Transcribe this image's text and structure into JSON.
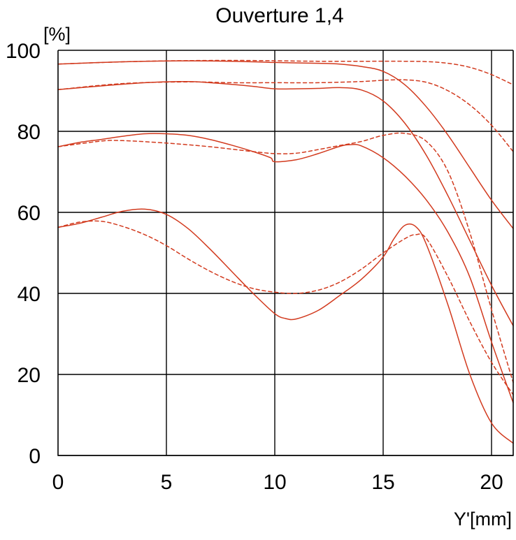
{
  "chart_data": {
    "type": "line",
    "title": "Ouverture 1,4",
    "ylabel": "[%]",
    "xlabel": "Y'[mm]",
    "xlim": [
      0,
      21
    ],
    "ylim": [
      0,
      100
    ],
    "xticks": [
      0,
      5,
      10,
      15,
      20
    ],
    "yticks": [
      0,
      20,
      40,
      60,
      80,
      100
    ],
    "grid": true,
    "line_color": "#d23a1e",
    "series": [
      {
        "style": "solid",
        "x": [
          0,
          2,
          4,
          6,
          8,
          10,
          12,
          13,
          14,
          15,
          16,
          17,
          18,
          19,
          20,
          21
        ],
        "y": [
          96.6,
          97,
          97.3,
          97.4,
          97.3,
          97,
          96.8,
          96.6,
          96,
          94.8,
          91.5,
          86,
          79,
          71,
          63,
          56
        ]
      },
      {
        "style": "dashed",
        "x": [
          0,
          4,
          8,
          12,
          14,
          16,
          17,
          18,
          19,
          20,
          21
        ],
        "y": [
          96.6,
          97.3,
          97.5,
          97.3,
          97.3,
          97.3,
          97.2,
          96.8,
          95.8,
          94,
          91.5
        ]
      },
      {
        "style": "solid",
        "x": [
          0,
          2,
          4,
          6,
          7,
          8,
          9,
          10,
          11,
          12,
          13,
          14,
          15,
          16,
          17,
          18,
          19,
          20,
          21
        ],
        "y": [
          90.3,
          91.2,
          92,
          92.3,
          92,
          91.6,
          91.1,
          90.5,
          90.5,
          90.6,
          90.8,
          90.2,
          87.5,
          82,
          74,
          64,
          53,
          42,
          32
        ]
      },
      {
        "style": "dashed",
        "x": [
          0,
          3,
          6,
          8,
          10,
          12,
          14,
          15,
          16,
          17,
          18,
          19,
          20,
          21
        ],
        "y": [
          90.3,
          91.8,
          92.2,
          92,
          92,
          92,
          92.3,
          92.6,
          92.7,
          92.1,
          90,
          86.5,
          81.5,
          75
        ]
      },
      {
        "style": "solid",
        "x": [
          0,
          1,
          2,
          3,
          4,
          5,
          6,
          7,
          8,
          9,
          9.8,
          10,
          11,
          12,
          13,
          13.5,
          14,
          15,
          16,
          17,
          18,
          19,
          20,
          21
        ],
        "y": [
          76.2,
          77.3,
          78,
          78.8,
          79.4,
          79.4,
          79,
          78,
          76.6,
          75,
          73.5,
          72.5,
          73,
          74.5,
          76.3,
          76.7,
          76.4,
          73.5,
          69,
          63,
          55,
          44,
          28,
          13
        ]
      },
      {
        "style": "dashed",
        "x": [
          0,
          2,
          3,
          5,
          7,
          9,
          10,
          11,
          12,
          13,
          14,
          15,
          16,
          17,
          18,
          19,
          20,
          21
        ],
        "y": [
          76.2,
          77.6,
          77.7,
          77.1,
          76.2,
          75,
          74.5,
          74.6,
          75.5,
          76.5,
          77.5,
          79,
          79.5,
          77.5,
          70,
          55,
          36,
          18
        ]
      },
      {
        "style": "solid",
        "x": [
          0,
          1,
          2,
          3,
          4,
          5,
          6,
          7,
          8,
          9,
          10,
          10.5,
          11,
          12,
          13,
          14,
          15,
          15.5,
          16,
          16.5,
          17,
          18,
          19,
          20,
          21
        ],
        "y": [
          56.3,
          57.3,
          58.8,
          60.3,
          60.8,
          59.5,
          56,
          51,
          45.5,
          40,
          35,
          33.8,
          33.7,
          35.8,
          39.5,
          43.5,
          49,
          53.5,
          56.8,
          56.5,
          52,
          37,
          20,
          8,
          3
        ]
      },
      {
        "style": "dashed",
        "x": [
          0,
          1,
          2,
          3,
          4,
          5,
          6,
          7,
          8,
          9,
          10,
          11,
          12,
          13,
          14,
          15,
          16,
          16.5,
          17,
          18,
          19,
          20,
          21
        ],
        "y": [
          56.3,
          57.6,
          57.8,
          56.5,
          54.5,
          51.8,
          48.5,
          45.5,
          43,
          41.2,
          40.3,
          40,
          40.8,
          42.8,
          46,
          50,
          53.5,
          54.5,
          53.5,
          44,
          33,
          23,
          15
        ]
      }
    ]
  }
}
